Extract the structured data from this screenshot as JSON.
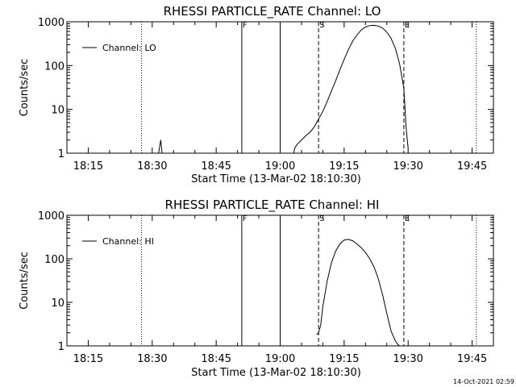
{
  "figure": {
    "timestamp": "14-Oct-2021 02:59"
  },
  "chart_data": [
    {
      "type": "line",
      "title": "RHESSI PARTICLE_RATE Channel: LO",
      "xlabel": "Start Time (13-Mar-02 18:10:30)",
      "ylabel": "Counts/sec",
      "yscale": "log",
      "ylim": [
        1,
        1000
      ],
      "xlim": [
        "18:10",
        "19:50"
      ],
      "xticks": [
        "18:15",
        "18:30",
        "18:45",
        "19:00",
        "19:15",
        "19:30",
        "19:45"
      ],
      "yticks": [
        "1",
        "10",
        "100",
        "1000"
      ],
      "legend": {
        "position": "top-left",
        "entries": [
          "Channel: LO"
        ]
      },
      "markers": [
        {
          "time": "18:27.5",
          "style": "dotted",
          "label": ""
        },
        {
          "time": "18:51",
          "style": "solid",
          "label": "F"
        },
        {
          "time": "19:00",
          "style": "solid",
          "label": ""
        },
        {
          "time": "19:09",
          "style": "dashed",
          "label": "S"
        },
        {
          "time": "19:29",
          "style": "dashed",
          "label": "E"
        },
        {
          "time": "19:46",
          "style": "dotted",
          "label": ""
        }
      ],
      "series": [
        {
          "name": "Channel: LO",
          "segments": [
            {
              "x": [
                "18:31.5",
                "18:32",
                "18:32.3"
              ],
              "y": [
                1,
                2,
                1
              ]
            },
            {
              "x": [
                "19:03.2",
                "19:03.4",
                "19:04",
                "19:05",
                "19:06",
                "19:07",
                "19:08",
                "19:09",
                "19:10",
                "19:11",
                "19:12",
                "19:13",
                "19:14",
                "19:15",
                "19:16",
                "19:17",
                "19:18",
                "19:19",
                "19:20",
                "19:21",
                "19:22",
                "19:23",
                "19:24",
                "19:25",
                "19:26",
                "19:27",
                "19:28",
                "19:29",
                "19:29.5",
                "19:30"
              ],
              "y": [
                1.0,
                1.3,
                1.6,
                2.0,
                2.5,
                3.0,
                4.0,
                6.0,
                9,
                15,
                26,
                45,
                80,
                140,
                230,
                360,
                500,
                650,
                760,
                820,
                830,
                800,
                720,
                580,
                420,
                250,
                110,
                30,
                4,
                1.3
              ]
            }
          ]
        }
      ]
    },
    {
      "type": "line",
      "title": "RHESSI PARTICLE_RATE Channel: HI",
      "xlabel": "Start Time (13-Mar-02 18:10:30)",
      "ylabel": "Counts/sec",
      "yscale": "log",
      "ylim": [
        1,
        1000
      ],
      "xlim": [
        "18:10",
        "19:50"
      ],
      "xticks": [
        "18:15",
        "18:30",
        "18:45",
        "19:00",
        "19:15",
        "19:30",
        "19:45"
      ],
      "yticks": [
        "1",
        "10",
        "100",
        "1000"
      ],
      "legend": {
        "position": "top-left",
        "entries": [
          "Channel: HI"
        ]
      },
      "markers": [
        {
          "time": "18:27.5",
          "style": "dotted",
          "label": ""
        },
        {
          "time": "18:51",
          "style": "solid",
          "label": "F"
        },
        {
          "time": "19:00",
          "style": "solid",
          "label": ""
        },
        {
          "time": "19:09",
          "style": "dashed",
          "label": "S"
        },
        {
          "time": "19:29",
          "style": "dashed",
          "label": "E"
        },
        {
          "time": "19:46",
          "style": "dotted",
          "label": ""
        }
      ],
      "series": [
        {
          "name": "Channel: HI",
          "segments": [
            {
              "x": [
                "19:08.5",
                "19:09",
                "19:09.5",
                "19:10",
                "19:11",
                "19:12",
                "19:13",
                "19:14",
                "19:15",
                "19:16",
                "19:17",
                "19:18",
                "19:19",
                "19:20",
                "19:21",
                "19:22",
                "19:23",
                "19:24",
                "19:25",
                "19:26",
                "19:27",
                "19:27.5",
                "19:28"
              ],
              "y": [
                1.8,
                2.0,
                3.0,
                8,
                30,
                80,
                150,
                220,
                270,
                280,
                260,
                220,
                180,
                140,
                100,
                65,
                35,
                15,
                5.5,
                2.2,
                1.3,
                1.1,
                1.0
              ]
            }
          ]
        }
      ]
    }
  ]
}
